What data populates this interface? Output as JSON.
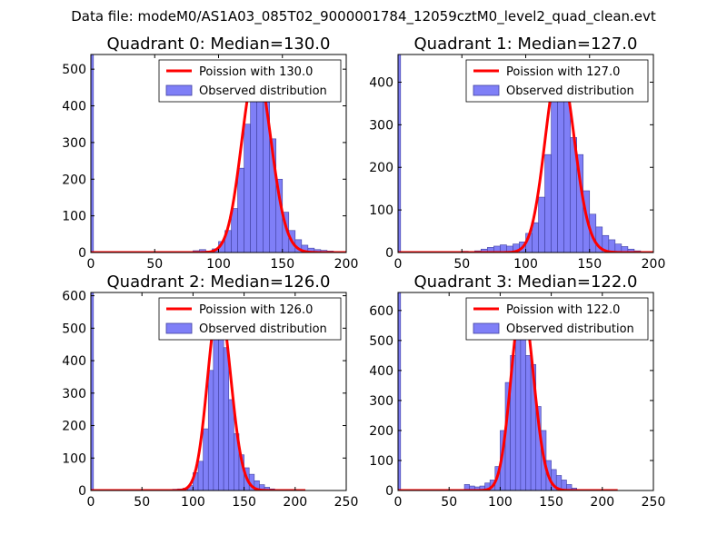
{
  "figure": {
    "suptitle": "Data file: modeM0/AS1A03_085T02_9000001784_12059cztM0_level2_quad_clean.evt"
  },
  "legend_labels": {
    "observed": "Observed distribution"
  },
  "colors": {
    "hist_fill": "#7f7ff7",
    "hist_edge": "#4040a0",
    "poisson_line": "#ff0000",
    "background": "#ffffff"
  },
  "chart_data": [
    {
      "type": "bar",
      "name": "quadrant-0",
      "title": "Quadrant 0: Median=130.0",
      "median": 130.0,
      "legend_poisson": "Poission with 130.0",
      "xlim": [
        0,
        200
      ],
      "ylim": [
        0,
        540
      ],
      "xticks": [
        0,
        50,
        100,
        150,
        200
      ],
      "yticks": [
        0,
        100,
        200,
        300,
        400,
        500
      ],
      "bin_width": 5,
      "spike_at_zero": {
        "x": 0,
        "width": 2,
        "value": 540
      },
      "bins": [
        {
          "x": 75,
          "v": 2
        },
        {
          "x": 80,
          "v": 5
        },
        {
          "x": 85,
          "v": 8
        },
        {
          "x": 90,
          "v": 4
        },
        {
          "x": 95,
          "v": 10
        },
        {
          "x": 100,
          "v": 30
        },
        {
          "x": 105,
          "v": 60
        },
        {
          "x": 110,
          "v": 120
        },
        {
          "x": 115,
          "v": 230
        },
        {
          "x": 120,
          "v": 350
        },
        {
          "x": 125,
          "v": 440
        },
        {
          "x": 130,
          "v": 500
        },
        {
          "x": 135,
          "v": 410
        },
        {
          "x": 140,
          "v": 310
        },
        {
          "x": 145,
          "v": 200
        },
        {
          "x": 150,
          "v": 110
        },
        {
          "x": 155,
          "v": 60
        },
        {
          "x": 160,
          "v": 35
        },
        {
          "x": 165,
          "v": 20
        },
        {
          "x": 170,
          "v": 12
        },
        {
          "x": 175,
          "v": 8
        },
        {
          "x": 180,
          "v": 6
        },
        {
          "x": 185,
          "v": 4
        },
        {
          "x": 190,
          "v": 2
        }
      ],
      "poisson_peak": 505,
      "poisson_range": [
        0,
        200
      ]
    },
    {
      "type": "bar",
      "name": "quadrant-1",
      "title": "Quadrant 1: Median=127.0",
      "median": 127.0,
      "legend_poisson": "Poission with 127.0",
      "xlim": [
        0,
        200
      ],
      "ylim": [
        0,
        465
      ],
      "xticks": [
        0,
        50,
        100,
        150,
        200
      ],
      "yticks": [
        0,
        100,
        200,
        300,
        400
      ],
      "bin_width": 5,
      "spike_at_zero": {
        "x": 0,
        "width": 2,
        "value": 465
      },
      "bins": [
        {
          "x": 50,
          "v": 3
        },
        {
          "x": 55,
          "v": 2
        },
        {
          "x": 60,
          "v": 4
        },
        {
          "x": 65,
          "v": 8
        },
        {
          "x": 70,
          "v": 12
        },
        {
          "x": 75,
          "v": 15
        },
        {
          "x": 80,
          "v": 18
        },
        {
          "x": 85,
          "v": 15
        },
        {
          "x": 90,
          "v": 20
        },
        {
          "x": 95,
          "v": 25
        },
        {
          "x": 100,
          "v": 45
        },
        {
          "x": 105,
          "v": 70
        },
        {
          "x": 110,
          "v": 130
        },
        {
          "x": 115,
          "v": 230
        },
        {
          "x": 120,
          "v": 380
        },
        {
          "x": 125,
          "v": 440
        },
        {
          "x": 130,
          "v": 380
        },
        {
          "x": 135,
          "v": 270
        },
        {
          "x": 140,
          "v": 230
        },
        {
          "x": 145,
          "v": 145
        },
        {
          "x": 150,
          "v": 90
        },
        {
          "x": 155,
          "v": 60
        },
        {
          "x": 160,
          "v": 40
        },
        {
          "x": 165,
          "v": 30
        },
        {
          "x": 170,
          "v": 20
        },
        {
          "x": 175,
          "v": 14
        },
        {
          "x": 180,
          "v": 8
        },
        {
          "x": 185,
          "v": 4
        }
      ],
      "poisson_peak": 445,
      "poisson_range": [
        0,
        200
      ]
    },
    {
      "type": "bar",
      "name": "quadrant-2",
      "title": "Quadrant 2: Median=126.0",
      "median": 126.0,
      "legend_poisson": "Poission with 126.0",
      "xlim": [
        0,
        250
      ],
      "ylim": [
        0,
        610
      ],
      "xticks": [
        0,
        50,
        100,
        150,
        200,
        250
      ],
      "yticks": [
        0,
        100,
        200,
        300,
        400,
        500,
        600
      ],
      "bin_width": 5,
      "spike_at_zero": {
        "x": 0,
        "width": 2.5,
        "value": 610
      },
      "bins": [
        {
          "x": 75,
          "v": 3
        },
        {
          "x": 80,
          "v": 4
        },
        {
          "x": 85,
          "v": 5
        },
        {
          "x": 90,
          "v": 7
        },
        {
          "x": 95,
          "v": 15
        },
        {
          "x": 100,
          "v": 55
        },
        {
          "x": 105,
          "v": 90
        },
        {
          "x": 110,
          "v": 190
        },
        {
          "x": 115,
          "v": 370
        },
        {
          "x": 120,
          "v": 490
        },
        {
          "x": 125,
          "v": 550
        },
        {
          "x": 130,
          "v": 440
        },
        {
          "x": 135,
          "v": 280
        },
        {
          "x": 140,
          "v": 175
        },
        {
          "x": 145,
          "v": 110
        },
        {
          "x": 150,
          "v": 70
        },
        {
          "x": 155,
          "v": 50
        },
        {
          "x": 160,
          "v": 30
        },
        {
          "x": 165,
          "v": 18
        },
        {
          "x": 170,
          "v": 10
        },
        {
          "x": 175,
          "v": 5
        },
        {
          "x": 180,
          "v": 3
        }
      ],
      "poisson_peak": 580,
      "poisson_range": [
        0,
        210
      ]
    },
    {
      "type": "bar",
      "name": "quadrant-3",
      "title": "Quadrant 3: Median=122.0",
      "median": 122.0,
      "legend_poisson": "Poission with 122.0",
      "xlim": [
        0,
        250
      ],
      "ylim": [
        0,
        660
      ],
      "xticks": [
        0,
        50,
        100,
        150,
        200,
        250
      ],
      "yticks": [
        0,
        100,
        200,
        300,
        400,
        500,
        600
      ],
      "bin_width": 5,
      "spike_at_zero": {
        "x": 0,
        "width": 2.5,
        "value": 660
      },
      "bins": [
        {
          "x": 65,
          "v": 20
        },
        {
          "x": 70,
          "v": 15
        },
        {
          "x": 75,
          "v": 12
        },
        {
          "x": 80,
          "v": 15
        },
        {
          "x": 85,
          "v": 25
        },
        {
          "x": 90,
          "v": 35
        },
        {
          "x": 95,
          "v": 80
        },
        {
          "x": 100,
          "v": 200
        },
        {
          "x": 105,
          "v": 360
        },
        {
          "x": 110,
          "v": 450
        },
        {
          "x": 115,
          "v": 570
        },
        {
          "x": 120,
          "v": 600
        },
        {
          "x": 125,
          "v": 450
        },
        {
          "x": 130,
          "v": 420
        },
        {
          "x": 135,
          "v": 280
        },
        {
          "x": 140,
          "v": 200
        },
        {
          "x": 145,
          "v": 100
        },
        {
          "x": 150,
          "v": 70
        },
        {
          "x": 155,
          "v": 50
        },
        {
          "x": 160,
          "v": 35
        },
        {
          "x": 165,
          "v": 20
        },
        {
          "x": 170,
          "v": 8
        }
      ],
      "poisson_peak": 625,
      "poisson_range": [
        0,
        215
      ]
    }
  ]
}
